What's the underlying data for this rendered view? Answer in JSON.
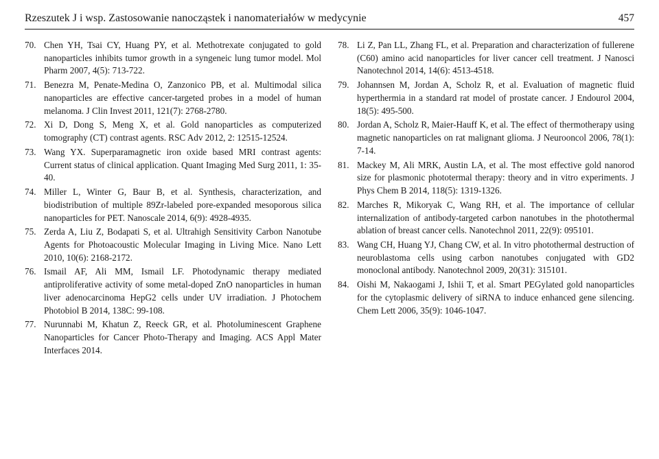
{
  "header": {
    "title": "Rzeszutek J i wsp.   Zastosowanie nanocząstek i nanomateriałów w medycynie",
    "page_number": "457"
  },
  "references_left": [
    {
      "n": "70.",
      "t": "Chen YH, Tsai CY, Huang PY, et al. Methotrexate conjugated to gold nanoparticles inhibits tumor growth in a syngeneic lung tumor model. Mol Pharm 2007, 4(5): 713-722."
    },
    {
      "n": "71.",
      "t": "Benezra M, Penate-Medina O, Zanzonico PB, et al. Multimodal silica nanoparticles are effective cancer-targeted probes in a model of human melanoma. J Clin Invest 2011, 121(7): 2768-2780."
    },
    {
      "n": "72.",
      "t": "Xi D, Dong S, Meng X, et al. Gold nanoparticles as computerized tomography (CT) contrast agents. RSC Adv 2012, 2: 12515-12524."
    },
    {
      "n": "73.",
      "t": "Wang YX. Superparamagnetic iron oxide based MRI contrast agents: Current status of clinical application. Quant Imaging Med Surg 2011, 1: 35-40."
    },
    {
      "n": "74.",
      "t": "Miller L, Winter G, Baur B, et al. Synthesis, characterization, and biodistribution of multiple 89Zr-labeled pore-expanded mesoporous silica nanoparticles for PET. Nanoscale 2014, 6(9): 4928-4935."
    },
    {
      "n": "75.",
      "t": "Zerda A, Liu Z, Bodapati S, et al. Ultrahigh Sensitivity Carbon Nanotube Agents for Photoacoustic Molecular Imaging in Living Mice. Nano Lett 2010, 10(6): 2168-2172."
    },
    {
      "n": "76.",
      "t": "Ismail AF, Ali MM, Ismail LF. Photodynamic therapy mediated antiproliferative activity of some metal-doped ZnO nanoparticles in human liver adenocarcinoma HepG2 cells under UV irradiation. J Photochem Photobiol B 2014, 138C: 99-108."
    },
    {
      "n": "77.",
      "t": "Nurunnabi M, Khatun Z, Reeck GR, et al. Photoluminescent Graphene Nanoparticles for Cancer Photo-Therapy and Imaging. ACS Appl Mater Interfaces 2014."
    }
  ],
  "references_right": [
    {
      "n": "78.",
      "t": "Li Z, Pan LL, Zhang FL, et al. Preparation and characterization of fullerene (C60) amino acid nanoparticles for liver cancer cell treatment. J Nanosci Nanotechnol 2014, 14(6): 4513-4518."
    },
    {
      "n": "79.",
      "t": "Johannsen M, Jordan A, Scholz R, et al. Evaluation of magnetic fluid hyperthermia in a standard rat model of prostate cancer. J Endourol 2004, 18(5): 495-500."
    },
    {
      "n": "80.",
      "t": "Jordan A, Scholz R, Maier-Hauff K, et al. The effect of thermotherapy using magnetic nanoparticles on rat malignant glioma. J Neurooncol 2006, 78(1): 7-14."
    },
    {
      "n": "81.",
      "t": "Mackey M, Ali MRK, Austin LA, et al. The most effective gold nanorod size for plasmonic phototermal therapy: theory and in vitro experiments. J Phys Chem B 2014, 118(5): 1319-1326."
    },
    {
      "n": "82.",
      "t": "Marches R, Mikoryak C, Wang RH, et al. The importance of cellular internalization of antibody-targeted carbon nanotubes in the photothermal ablation of breast cancer cells. Nanotechnol 2011, 22(9): 095101."
    },
    {
      "n": "83.",
      "t": "Wang CH, Huang YJ, Chang CW, et al. In vitro photothermal destruction of neuroblastoma cells using carbon nanotubes conjugated with GD2 monoclonal antibody. Nanotechnol 2009, 20(31): 315101."
    },
    {
      "n": "84.",
      "t": "Oishi M, Nakaogami J, Ishii T, et al. Smart PEGylated gold nanoparticles for the cytoplasmic delivery of siRNA to induce enhanced gene silencing. Chem Lett 2006, 35(9): 1046-1047."
    }
  ]
}
